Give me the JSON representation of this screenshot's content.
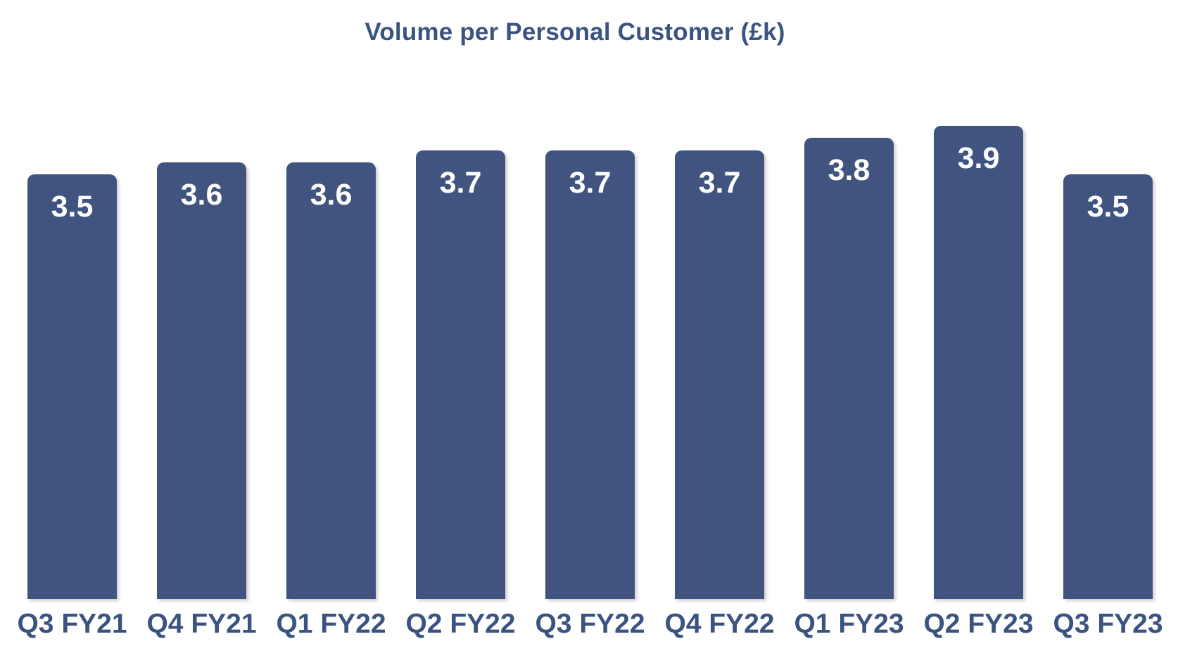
{
  "chart_data": {
    "type": "bar",
    "title": "Volume per Personal Customer (£k)",
    "categories": [
      "Q3 FY21",
      "Q4 FY21",
      "Q1 FY22",
      "Q2 FY22",
      "Q3 FY22",
      "Q4 FY22",
      "Q1 FY23",
      "Q2 FY23",
      "Q3 FY23"
    ],
    "values": [
      3.5,
      3.6,
      3.6,
      3.7,
      3.7,
      3.7,
      3.8,
      3.9,
      3.5
    ],
    "value_labels": [
      "3.5",
      "3.6",
      "3.6",
      "3.7",
      "3.7",
      "3.7",
      "3.8",
      "3.9",
      "3.5"
    ],
    "xlabel": "",
    "ylabel": "",
    "ylim": [
      0,
      4.94
    ],
    "grid": false,
    "legend": false,
    "axes_shown": false,
    "value_labels_position": "inside-top"
  },
  "colors": {
    "bar": "#40547f",
    "text": "#3a5381",
    "value_label": "#ffffff",
    "background": "#ffffff"
  }
}
